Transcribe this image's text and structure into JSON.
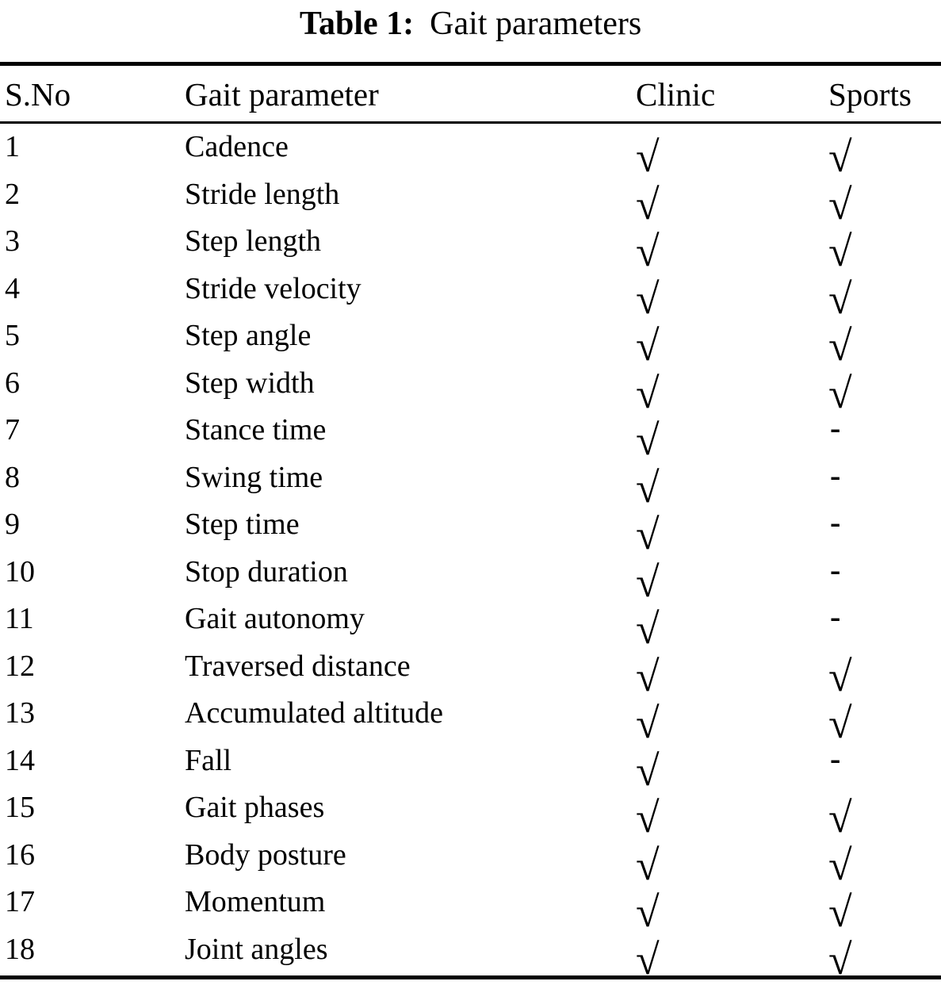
{
  "caption": {
    "label": "Table 1:",
    "title": "Gait parameters"
  },
  "table": {
    "headers": {
      "sno": "S.No",
      "parameter": "Gait parameter",
      "clinic": "Clinic",
      "sports": "Sports"
    },
    "symbols": {
      "check": "√",
      "dash": "-"
    },
    "rows": [
      {
        "no": "1",
        "parameter": "Cadence",
        "clinic": "√",
        "sports": "√"
      },
      {
        "no": "2",
        "parameter": "Stride length",
        "clinic": "√",
        "sports": "√"
      },
      {
        "no": "3",
        "parameter": "Step length",
        "clinic": "√",
        "sports": "√"
      },
      {
        "no": "4",
        "parameter": "Stride velocity",
        "clinic": "√",
        "sports": "√"
      },
      {
        "no": "5",
        "parameter": "Step angle",
        "clinic": "√",
        "sports": "√"
      },
      {
        "no": "6",
        "parameter": "Step width",
        "clinic": "√",
        "sports": "√"
      },
      {
        "no": "7",
        "parameter": "Stance time",
        "clinic": "√",
        "sports": "-"
      },
      {
        "no": "8",
        "parameter": "Swing time",
        "clinic": "√",
        "sports": "-"
      },
      {
        "no": "9",
        "parameter": "Step time",
        "clinic": "√",
        "sports": "-"
      },
      {
        "no": "10",
        "parameter": "Stop duration",
        "clinic": "√",
        "sports": "-"
      },
      {
        "no": "11",
        "parameter": "Gait autonomy",
        "clinic": "√",
        "sports": "-"
      },
      {
        "no": "12",
        "parameter": "Traversed distance",
        "clinic": "√",
        "sports": "√"
      },
      {
        "no": "13",
        "parameter": "Accumulated altitude",
        "clinic": "√",
        "sports": "√"
      },
      {
        "no": "14",
        "parameter": "Fall",
        "clinic": "√",
        "sports": "-"
      },
      {
        "no": "15",
        "parameter": "Gait phases",
        "clinic": "√",
        "sports": "√"
      },
      {
        "no": "16",
        "parameter": "Body posture",
        "clinic": "√",
        "sports": "√"
      },
      {
        "no": "17",
        "parameter": "Momentum",
        "clinic": "√",
        "sports": "√"
      },
      {
        "no": "18",
        "parameter": "Joint angles",
        "clinic": "√",
        "sports": "√"
      }
    ]
  }
}
